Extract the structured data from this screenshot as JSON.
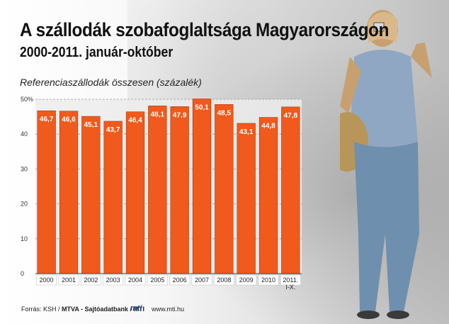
{
  "title": "A szállodák szobafoglaltsága Magyarországon",
  "subtitle": "2000-2011. január-október",
  "source": {
    "prefix": "Forrás: KSH / ",
    "agency": "MTVA - Sajtóadatbank / MTI"
  },
  "logo_text": "mti",
  "website": "www.mti.hu",
  "colors": {
    "bar": "#f05a1c",
    "bar_edge": "#a83a0e",
    "plot_bg": "#ececec"
  },
  "chart_data": {
    "type": "bar",
    "title": "A szállodák szobafoglaltsága Magyarországon",
    "subtitle": "2000-2011. január-október",
    "ylabel": "Referenciaszállodák összesen (százalék)",
    "categories": [
      "2000",
      "2001",
      "2002",
      "2003",
      "2004",
      "2005",
      "2006",
      "2007",
      "2008",
      "2009",
      "2010",
      "2011.\nI-X."
    ],
    "values": [
      46.7,
      46.6,
      45.1,
      43.7,
      46.4,
      48.1,
      47.9,
      50.1,
      48.5,
      43.1,
      44.8,
      47.8
    ],
    "value_labels": [
      "46,7",
      "46,6",
      "45,1",
      "43,7",
      "46,4",
      "48,1",
      "47,9",
      "50,1",
      "48,5",
      "43,1",
      "44,8",
      "47,8"
    ],
    "yticks": [
      "0",
      "10",
      "20",
      "30",
      "40",
      "50%"
    ],
    "ylim": [
      0,
      50
    ],
    "grid": true
  }
}
